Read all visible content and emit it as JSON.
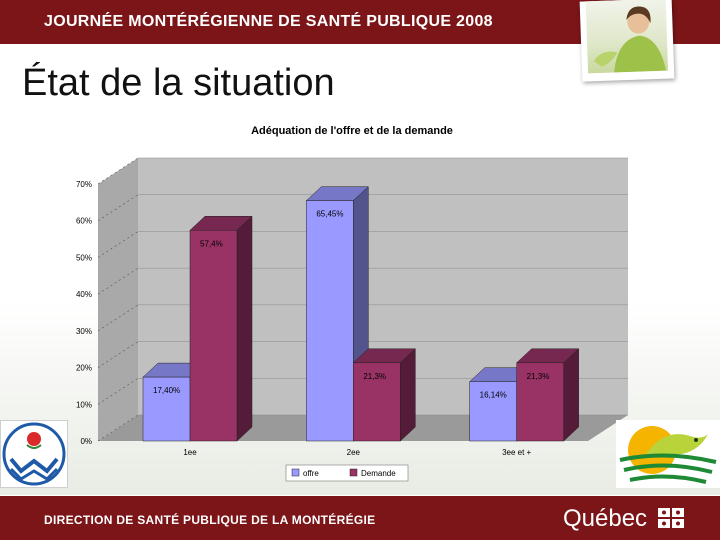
{
  "header": {
    "banner_title": "JOURNÉE MONTÉRÉGIENNE DE SANTÉ PUBLIQUE 2008"
  },
  "page": {
    "heading": "État de la situation"
  },
  "footer": {
    "banner_title": "DIRECTION DE SANTÉ PUBLIQUE DE LA MONTÉRÉGIE",
    "quebec": "Québec"
  },
  "colors": {
    "banner": "#7b1518",
    "offre": "#9999ff",
    "demande": "#993366",
    "plot_bg": "#c0c0c0"
  },
  "chart_data": {
    "type": "bar",
    "title": "Adéquation de l'offre et de la demande",
    "categories": [
      "1ee",
      "2ee",
      "3ee et +"
    ],
    "series": [
      {
        "name": "offre",
        "values": [
          17.4,
          65.45,
          16.14
        ],
        "labels": [
          "17,40%",
          "65,45%",
          "16,14%"
        ],
        "color": "#9999ff"
      },
      {
        "name": "Demande",
        "values": [
          57.4,
          21.3,
          21.3
        ],
        "labels": [
          "57,4%",
          "21,3%",
          "21,3%"
        ],
        "color": "#993366"
      }
    ],
    "yticks": [
      "0%",
      "10%",
      "20%",
      "30%",
      "40%",
      "50%",
      "60%",
      "70%"
    ],
    "ylim": [
      0,
      70
    ],
    "grid": true,
    "legend": "bottom",
    "three_d": true
  }
}
